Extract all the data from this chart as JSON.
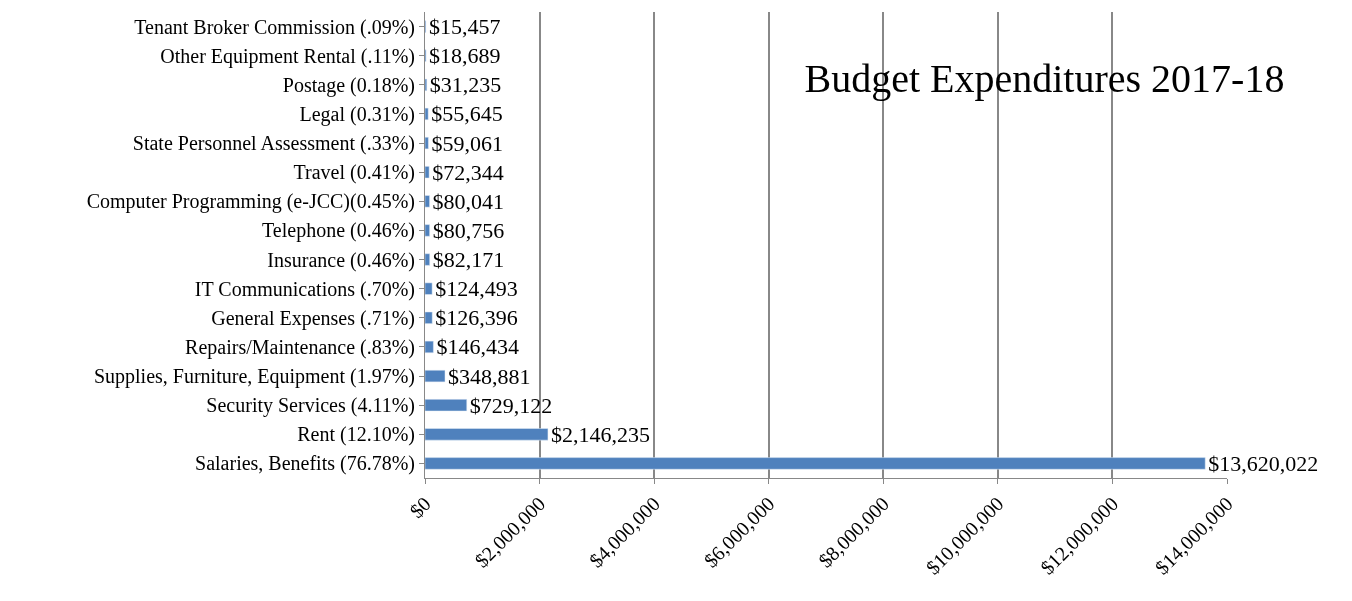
{
  "chart_data": {
    "type": "bar",
    "orientation": "horizontal",
    "title": "Budget Expenditures 2017-18",
    "categories": [
      "Tenant Broker Commission (.09%)",
      "Other Equipment Rental (.11%)",
      "Postage (0.18%)",
      "Legal (0.31%)",
      "State Personnel Assessment (.33%)",
      "Travel (0.41%)",
      "Computer Programming (e-JCC)(0.45%)",
      "Telephone (0.46%)",
      "Insurance (0.46%)",
      "IT Communications (.70%)",
      "General Expenses (.71%)",
      "Repairs/Maintenance (.83%)",
      "Supplies, Furniture, Equipment (1.97%)",
      "Security Services (4.11%)",
      "Rent (12.10%)",
      "Salaries, Benefits (76.78%)"
    ],
    "values": [
      15457,
      18689,
      31235,
      55645,
      59061,
      72344,
      80041,
      80756,
      82171,
      124493,
      126396,
      146434,
      348881,
      729122,
      2146235,
      13620022
    ],
    "value_labels": [
      "$15,457",
      "$18,689",
      "$31,235",
      "$55,645",
      "$59,061",
      "$72,344",
      "$80,041",
      "$80,756",
      "$82,171",
      "$124,493",
      "$126,396",
      "$146,434",
      "$348,881",
      "$729,122",
      "$2,146,235",
      "$13,620,022"
    ],
    "color": "#4f81bd",
    "xlim": [
      0,
      14000000
    ],
    "xticks": [
      {
        "value": 0,
        "label": "$0"
      },
      {
        "value": 2000000,
        "label": "$2,000,000"
      },
      {
        "value": 4000000,
        "label": "$4,000,000"
      },
      {
        "value": 6000000,
        "label": "$6,000,000"
      },
      {
        "value": 8000000,
        "label": "$8,000,000"
      },
      {
        "value": 10000000,
        "label": "$10,000,000"
      },
      {
        "value": 12000000,
        "label": "$12,000,000"
      },
      {
        "value": 14000000,
        "label": "$14,000,000"
      }
    ],
    "grid": "x",
    "legend": false
  }
}
